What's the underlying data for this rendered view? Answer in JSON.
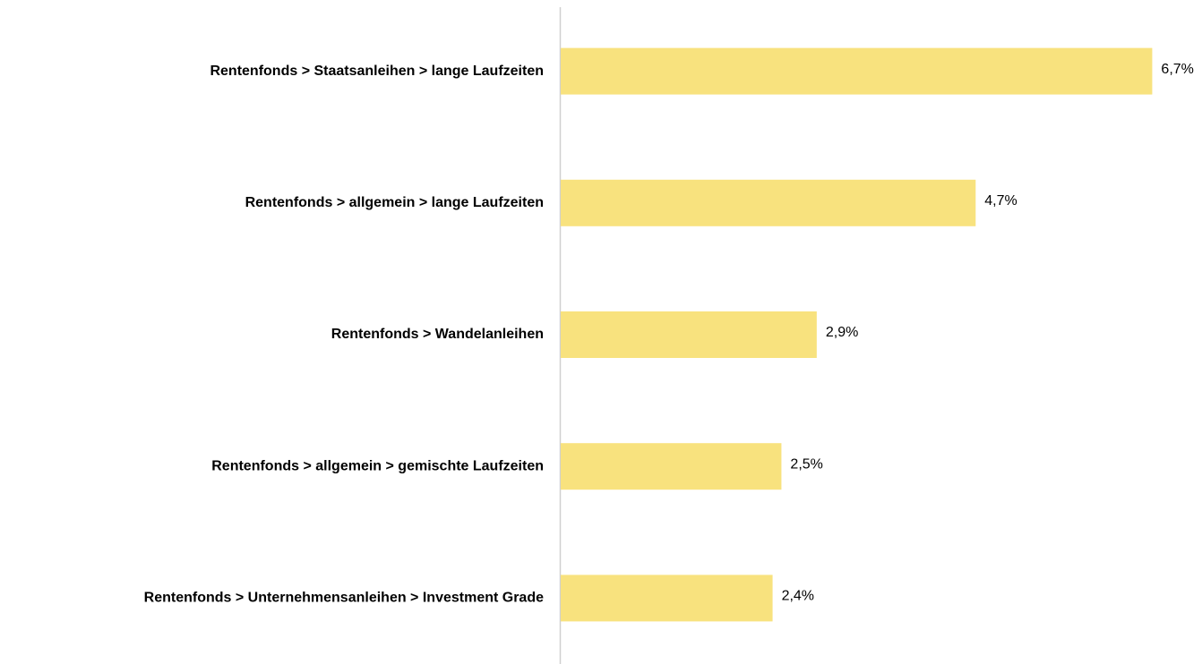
{
  "chart_data": {
    "type": "hbar",
    "categories": [
      "Rentenfonds > Staatsanleihen > lange Laufzeiten",
      "Rentenfonds > allgemein > lange Laufzeiten",
      "Rentenfonds > Wandelanleihen",
      "Rentenfonds > allgemein > gemischte Laufzeiten",
      "Rentenfonds > Unternehmensanleihen > Investment Grade"
    ],
    "values": [
      6.7,
      4.7,
      2.9,
      2.5,
      2.4
    ],
    "value_labels": [
      "6,7%",
      "4,7%",
      "2,9%",
      "2,5%",
      "2,4%"
    ],
    "color": "#f8e27e",
    "xlim": [
      0,
      7
    ]
  }
}
